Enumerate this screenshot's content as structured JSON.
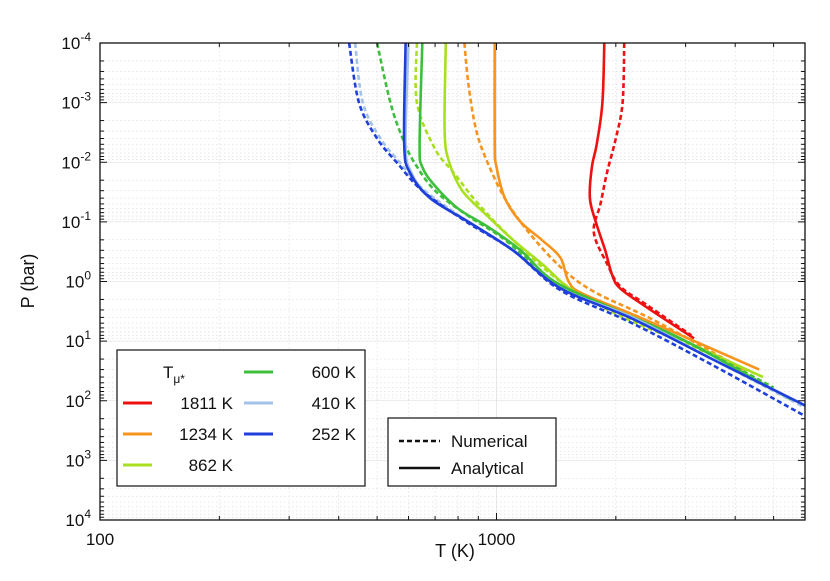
{
  "chart_data": {
    "type": "line",
    "title": "",
    "xlabel": "T (K)",
    "ylabel": "P (bar)",
    "xscale": "log",
    "yscale": "log",
    "y_inverted": true,
    "xlim": [
      100,
      6000
    ],
    "ylim": [
      0.0001,
      10000
    ],
    "grid": true,
    "x_ticks": [
      {
        "value": 100,
        "label": "100"
      },
      {
        "value": 1000,
        "label": "1000"
      }
    ],
    "y_ticks": [
      {
        "value": 0.0001,
        "base": "10",
        "exp": "-4"
      },
      {
        "value": 0.001,
        "base": "10",
        "exp": "-3"
      },
      {
        "value": 0.01,
        "base": "10",
        "exp": "-2"
      },
      {
        "value": 0.1,
        "base": "10",
        "exp": "-1"
      },
      {
        "value": 1,
        "base": "10",
        "exp": "0"
      },
      {
        "value": 10,
        "base": "10",
        "exp": "1"
      },
      {
        "value": 100,
        "base": "10",
        "exp": "2"
      },
      {
        "value": 1000,
        "base": "10",
        "exp": "3"
      },
      {
        "value": 10000,
        "base": "10",
        "exp": "4"
      }
    ],
    "legend_title_base": "T",
    "legend_title_sub": "μ*",
    "line_styles": [
      {
        "name": "Numerical",
        "style": "dashed"
      },
      {
        "name": "Analytical",
        "style": "solid"
      }
    ],
    "series": [
      {
        "name": "1811 K",
        "color": "#ee1111",
        "numerical": [
          [
            2100,
            0.0001
          ],
          [
            2080,
            0.001
          ],
          [
            2000,
            0.004
          ],
          [
            1900,
            0.015
          ],
          [
            1830,
            0.05
          ],
          [
            1760,
            0.15
          ],
          [
            1900,
            0.5
          ],
          [
            2050,
            1.2
          ],
          [
            2400,
            2.5
          ],
          [
            3100,
            8
          ]
        ],
        "analytical": [
          [
            1870,
            0.0001
          ],
          [
            1850,
            0.001
          ],
          [
            1790,
            0.005
          ],
          [
            1740,
            0.012
          ],
          [
            1720,
            0.04
          ],
          [
            1780,
            0.1
          ],
          [
            1880,
            0.3
          ],
          [
            1960,
            0.8
          ],
          [
            2050,
            1.3
          ],
          [
            2350,
            2.5
          ],
          [
            3150,
            9
          ]
        ]
      },
      {
        "name": "1234 K",
        "color": "#f7941d",
        "numerical": [
          [
            830,
            0.0001
          ],
          [
            850,
            0.0005
          ],
          [
            890,
            0.003
          ],
          [
            960,
            0.012
          ],
          [
            1070,
            0.05
          ],
          [
            1250,
            0.2
          ],
          [
            1500,
            0.7
          ],
          [
            1800,
            1.6
          ],
          [
            2500,
            4.5
          ],
          [
            4200,
            30
          ]
        ],
        "analytical": [
          [
            990,
            0.0001
          ],
          [
            990,
            0.005
          ],
          [
            1000,
            0.012
          ],
          [
            1050,
            0.04
          ],
          [
            1150,
            0.1
          ],
          [
            1300,
            0.2
          ],
          [
            1450,
            0.4
          ],
          [
            1520,
            1.0
          ],
          [
            1650,
            1.6
          ],
          [
            2300,
            4
          ],
          [
            4600,
            30
          ]
        ]
      },
      {
        "name": "862 K",
        "color": "#a8e020",
        "numerical": [
          [
            630,
            0.0001
          ],
          [
            630,
            0.001
          ],
          [
            700,
            0.006
          ],
          [
            780,
            0.015
          ],
          [
            900,
            0.05
          ],
          [
            1100,
            0.2
          ],
          [
            1450,
            1.0
          ],
          [
            2000,
            3.5
          ],
          [
            3000,
            11
          ],
          [
            4700,
            40
          ]
        ],
        "analytical": [
          [
            745,
            0.0001
          ],
          [
            740,
            0.003
          ],
          [
            760,
            0.01
          ],
          [
            820,
            0.03
          ],
          [
            950,
            0.08
          ],
          [
            1100,
            0.2
          ],
          [
            1300,
            0.5
          ],
          [
            1600,
            1.6
          ],
          [
            2300,
            4.5
          ],
          [
            4700,
            40
          ]
        ]
      },
      {
        "name": "600 K",
        "color": "#3dbf3d",
        "numerical": [
          [
            500,
            0.0001
          ],
          [
            540,
            0.001
          ],
          [
            580,
            0.004
          ],
          [
            620,
            0.01
          ],
          [
            700,
            0.03
          ],
          [
            850,
            0.08
          ],
          [
            1050,
            0.2
          ],
          [
            1400,
            1.0
          ],
          [
            2000,
            3
          ],
          [
            3000,
            10
          ],
          [
            5000,
            60
          ]
        ],
        "analytical": [
          [
            650,
            0.0001
          ],
          [
            640,
            0.005
          ],
          [
            650,
            0.012
          ],
          [
            700,
            0.025
          ],
          [
            800,
            0.06
          ],
          [
            950,
            0.12
          ],
          [
            1150,
            0.3
          ],
          [
            1400,
            1.0
          ],
          [
            2000,
            3
          ],
          [
            3000,
            10
          ],
          [
            5600,
            100
          ]
        ]
      },
      {
        "name": "410 K",
        "color": "#a3c2e8",
        "numerical": [
          [
            440,
            0.0001
          ],
          [
            460,
            0.001
          ],
          [
            510,
            0.004
          ],
          [
            570,
            0.01
          ],
          [
            660,
            0.03
          ],
          [
            850,
            0.1
          ],
          [
            1100,
            0.3
          ],
          [
            1450,
            1.3
          ],
          [
            2200,
            4
          ],
          [
            3500,
            20
          ],
          [
            6000,
            130
          ]
        ],
        "analytical": [
          [
            600,
            0.0001
          ],
          [
            590,
            0.005
          ],
          [
            610,
            0.015
          ],
          [
            680,
            0.04
          ],
          [
            850,
            0.1
          ],
          [
            1100,
            0.3
          ],
          [
            1450,
            1.3
          ],
          [
            2200,
            4
          ],
          [
            3500,
            20
          ],
          [
            6000,
            120
          ]
        ]
      },
      {
        "name": "252 K",
        "color": "#1f3fdb",
        "numerical": [
          [
            425,
            0.0001
          ],
          [
            450,
            0.001
          ],
          [
            500,
            0.004
          ],
          [
            560,
            0.01
          ],
          [
            650,
            0.03
          ],
          [
            840,
            0.1
          ],
          [
            1100,
            0.3
          ],
          [
            1450,
            1.4
          ],
          [
            2200,
            5
          ],
          [
            3500,
            25
          ],
          [
            6000,
            180
          ]
        ],
        "analytical": [
          [
            590,
            0.0001
          ],
          [
            585,
            0.005
          ],
          [
            605,
            0.015
          ],
          [
            680,
            0.04
          ],
          [
            850,
            0.1
          ],
          [
            1100,
            0.3
          ],
          [
            1450,
            1.3
          ],
          [
            2200,
            4.2
          ],
          [
            3500,
            20
          ],
          [
            6000,
            120
          ]
        ]
      }
    ]
  }
}
